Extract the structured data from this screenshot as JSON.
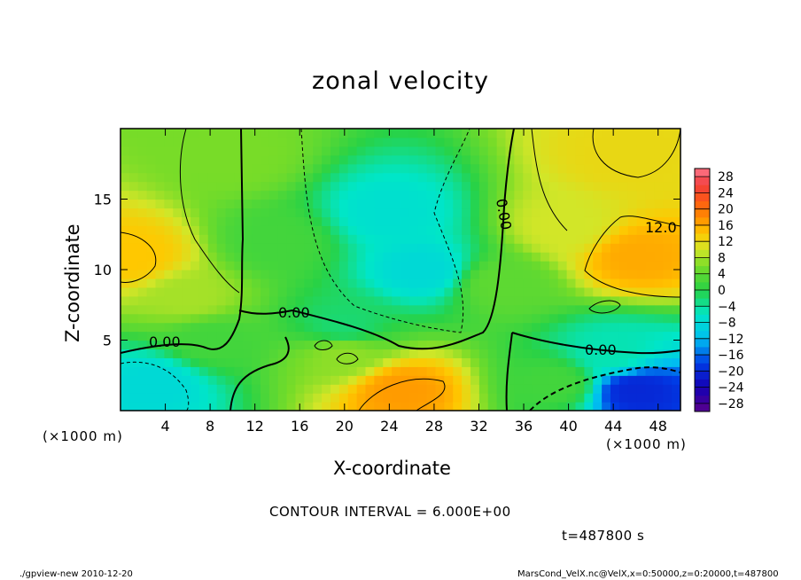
{
  "chart_data": {
    "type": "heatmap",
    "title": "zonal velocity",
    "xlabel": "X-coordinate",
    "ylabel": "Z-coordinate",
    "x_unit": "(×1000 m)",
    "y_unit": "(×1000 m)",
    "x_ticks": [
      "4",
      "8",
      "12",
      "16",
      "20",
      "24",
      "28",
      "32",
      "36",
      "40",
      "44",
      "48"
    ],
    "y_ticks": [
      "5",
      "10",
      "15"
    ],
    "xlim": [
      0,
      50
    ],
    "ylim": [
      0,
      20
    ],
    "contour_interval_text": "CONTOUR INTERVAL = 6.000E+00",
    "time_text": "t=487800 s",
    "contour_labels": [
      "0.00",
      "0.00",
      "0.00",
      "0.00",
      "12.0"
    ],
    "colorbar": {
      "ticks": [
        "28",
        "24",
        "20",
        "16",
        "12",
        "8",
        "4",
        "0",
        "−4",
        "−8",
        "−12",
        "−16",
        "−20",
        "−24",
        "−28"
      ],
      "range": [
        -30,
        30
      ]
    },
    "field_regions": [
      {
        "x": 1,
        "z": 11,
        "value": 14
      },
      {
        "x": 6,
        "z": 8,
        "value": 8
      },
      {
        "x": 3,
        "z": 2,
        "value": -8
      },
      {
        "x": 8,
        "z": 5,
        "value": 2
      },
      {
        "x": 14,
        "z": 12,
        "value": 2
      },
      {
        "x": 24,
        "z": 14,
        "value": -7
      },
      {
        "x": 27,
        "z": 10,
        "value": -8
      },
      {
        "x": 20,
        "z": 6,
        "value": -2
      },
      {
        "x": 25,
        "z": 1.5,
        "value": 17
      },
      {
        "x": 20,
        "z": 4,
        "value": 7
      },
      {
        "x": 34,
        "z": 9,
        "value": 4
      },
      {
        "x": 39,
        "z": 2,
        "value": 2
      },
      {
        "x": 46,
        "z": 11,
        "value": 16
      },
      {
        "x": 45,
        "z": 18,
        "value": 12
      },
      {
        "x": 40,
        "z": 13,
        "value": 10
      },
      {
        "x": 46,
        "z": 1.5,
        "value": -20
      },
      {
        "x": 44,
        "z": 4,
        "value": -5
      },
      {
        "x": 10,
        "z": 18,
        "value": 6
      }
    ]
  },
  "footer": {
    "left": "./gpview-new   2010-12-20",
    "right": "MarsCond_VelX.nc@VelX,x=0:50000,z=0:20000,t=487800"
  }
}
